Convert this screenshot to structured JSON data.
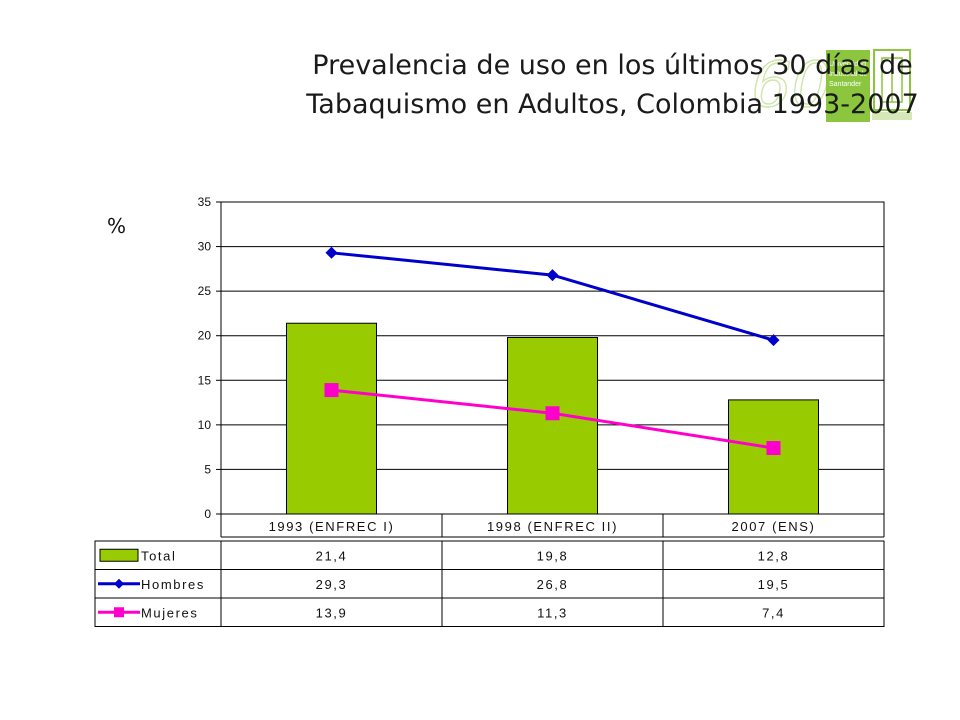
{
  "title": {
    "line1": "Prevalencia de uso en los últimos 30 días de",
    "line2": "Tabaquismo en Adultos, Colombia 1993-2007"
  },
  "logo": {
    "icon": "university-logo-icon",
    "line1": "Universidad",
    "line2": "Industrial de",
    "line3": "Santander",
    "color": "#8cc63f"
  },
  "chart_data": {
    "type": "bar",
    "unit_label": "%",
    "categories": [
      "1993 (ENFREC I)",
      "1998 (ENFREC II)",
      "2007 (ENS)"
    ],
    "ylim": [
      0,
      35
    ],
    "yticks": [
      0,
      5,
      10,
      15,
      20,
      25,
      30,
      35
    ],
    "grid": true,
    "legend": "table-below",
    "series": [
      {
        "name": "Total",
        "kind": "bar",
        "color": "#99cc00",
        "values": [
          21.4,
          19.8,
          12.8
        ],
        "labels": [
          "21,4",
          "19,8",
          "12,8"
        ]
      },
      {
        "name": "Hombres",
        "kind": "line",
        "marker": "diamond",
        "color": "#0000cc",
        "values": [
          29.3,
          26.8,
          19.5
        ],
        "labels": [
          "29,3",
          "26,8",
          "19,5"
        ]
      },
      {
        "name": "Mujeres",
        "kind": "line",
        "marker": "square",
        "color": "#ff00cc",
        "values": [
          13.9,
          11.3,
          7.4
        ],
        "labels": [
          "13,9",
          "11,3",
          "7,4"
        ]
      }
    ]
  }
}
